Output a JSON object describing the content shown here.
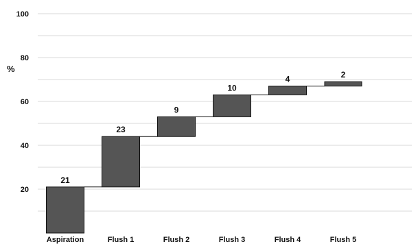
{
  "chart_data": {
    "type": "bar",
    "subtype": "waterfall",
    "title": "",
    "xlabel": "",
    "ylabel": "%",
    "ylim": [
      0,
      100
    ],
    "y_ticks": [
      20,
      40,
      60,
      80,
      100
    ],
    "grid": true,
    "legend": "none",
    "categories": [
      "Aspiration",
      "Flush 1",
      "Flush 2",
      "Flush 3",
      "Flush 4",
      "Flush 5"
    ],
    "values": [
      21,
      23,
      9,
      10,
      4,
      2
    ],
    "cumulative": [
      21,
      44,
      53,
      63,
      67,
      69
    ],
    "colors": {
      "bar": "#555555",
      "bar_edge": "#111111",
      "grid": "#d8d8d8",
      "connector": "#111111"
    }
  }
}
